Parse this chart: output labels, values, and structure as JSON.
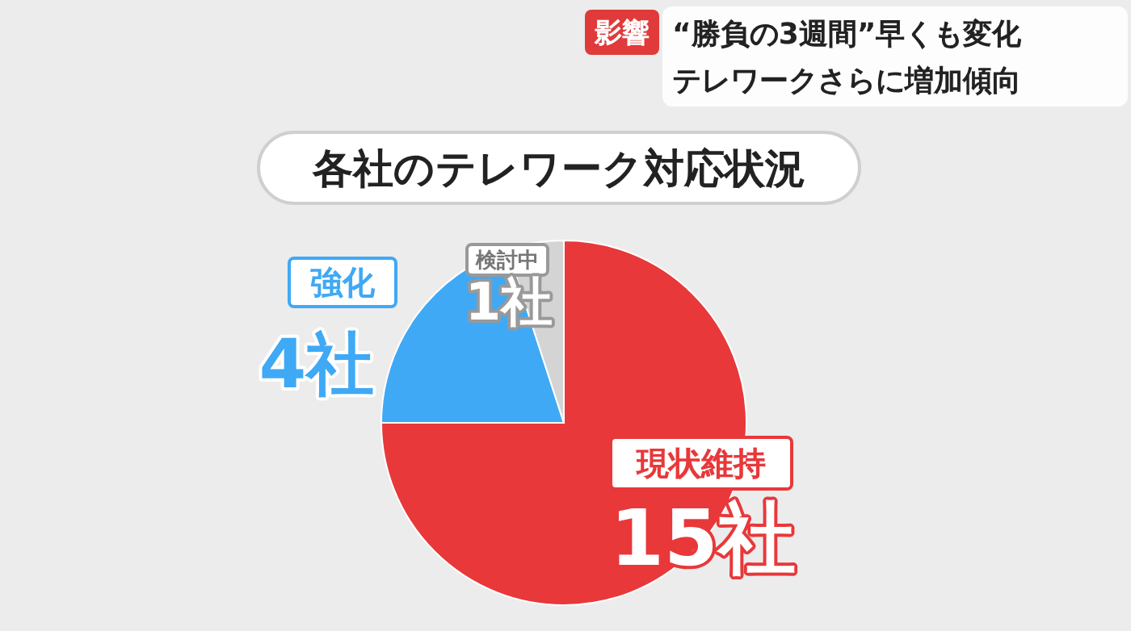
{
  "chart_data": {
    "type": "pie",
    "title": "各社のテレワーク対応状況",
    "categories": [
      "現状維持",
      "強化",
      "検討中"
    ],
    "values": [
      15,
      4,
      1
    ],
    "colors": [
      "#e8383a",
      "#3fa9f5",
      "#d4d4d4"
    ],
    "value_labels": [
      "15社",
      "4社",
      "1社"
    ],
    "annotations": [
      "影響",
      "“勝負の3週間”早くも変化",
      "テレワークさらに増加傾向"
    ]
  }
}
